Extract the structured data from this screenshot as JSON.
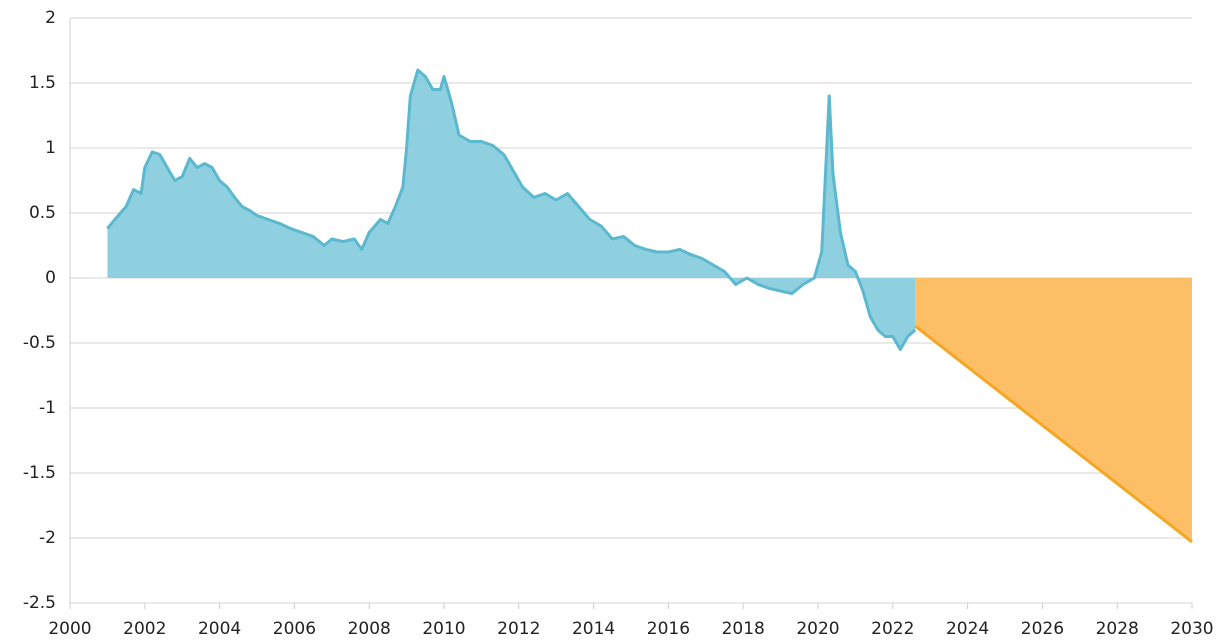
{
  "chart_data": {
    "type": "area",
    "xlim": [
      2000,
      2030
    ],
    "xticks": [
      2000,
      2002,
      2004,
      2006,
      2008,
      2010,
      2012,
      2014,
      2016,
      2018,
      2020,
      2022,
      2024,
      2026,
      2028,
      2030
    ],
    "ylim": [
      -2.5,
      2
    ],
    "yticks": [
      -2.5,
      -2,
      -1.5,
      -1,
      -0.5,
      0,
      0.5,
      1,
      1.5,
      2
    ],
    "grid": true,
    "series": [
      {
        "color": "#5bb8cf",
        "fill": "#8fd0e0",
        "x": [
          2001.0,
          2001.2,
          2001.5,
          2001.7,
          2001.9,
          2002.0,
          2002.2,
          2002.4,
          2002.6,
          2002.8,
          2003.0,
          2003.2,
          2003.4,
          2003.6,
          2003.8,
          2004.0,
          2004.2,
          2004.4,
          2004.6,
          2004.8,
          2005.0,
          2005.3,
          2005.6,
          2005.9,
          2006.2,
          2006.5,
          2006.8,
          2007.0,
          2007.3,
          2007.6,
          2007.8,
          2008.0,
          2008.3,
          2008.5,
          2008.7,
          2008.9,
          2009.0,
          2009.1,
          2009.3,
          2009.5,
          2009.7,
          2009.9,
          2010.0,
          2010.2,
          2010.4,
          2010.7,
          2011.0,
          2011.3,
          2011.6,
          2011.9,
          2012.1,
          2012.4,
          2012.7,
          2013.0,
          2013.3,
          2013.6,
          2013.9,
          2014.2,
          2014.5,
          2014.8,
          2015.1,
          2015.4,
          2015.7,
          2016.0,
          2016.3,
          2016.6,
          2016.9,
          2017.2,
          2017.5,
          2017.8,
          2018.1,
          2018.4,
          2018.7,
          2019.0,
          2019.3,
          2019.6,
          2019.9,
          2020.1,
          2020.2,
          2020.3,
          2020.4,
          2020.6,
          2020.8,
          2021.0,
          2021.2,
          2021.4,
          2021.6,
          2021.8,
          2022.0,
          2022.2,
          2022.4,
          2022.6
        ],
        "values": [
          0.38,
          0.45,
          0.55,
          0.68,
          0.65,
          0.85,
          0.97,
          0.95,
          0.85,
          0.75,
          0.78,
          0.92,
          0.85,
          0.88,
          0.85,
          0.75,
          0.7,
          0.62,
          0.55,
          0.52,
          0.48,
          0.45,
          0.42,
          0.38,
          0.35,
          0.32,
          0.25,
          0.3,
          0.28,
          0.3,
          0.22,
          0.35,
          0.45,
          0.42,
          0.55,
          0.7,
          1.0,
          1.4,
          1.6,
          1.55,
          1.45,
          1.45,
          1.55,
          1.35,
          1.1,
          1.05,
          1.05,
          1.02,
          0.95,
          0.8,
          0.7,
          0.62,
          0.65,
          0.6,
          0.65,
          0.55,
          0.45,
          0.4,
          0.3,
          0.32,
          0.25,
          0.22,
          0.2,
          0.2,
          0.22,
          0.18,
          0.15,
          0.1,
          0.05,
          -0.05,
          0.0,
          -0.05,
          -0.08,
          -0.1,
          -0.12,
          -0.05,
          0.0,
          0.2,
          0.8,
          1.4,
          0.8,
          0.35,
          0.1,
          0.05,
          -0.1,
          -0.3,
          -0.4,
          -0.45,
          -0.45,
          -0.55,
          -0.45,
          -0.4
        ]
      },
      {
        "color": "#f5a623",
        "fill": "#fdbf66",
        "x": [
          2022.6,
          2030
        ],
        "values": [
          -0.37,
          -2.03
        ]
      }
    ]
  }
}
